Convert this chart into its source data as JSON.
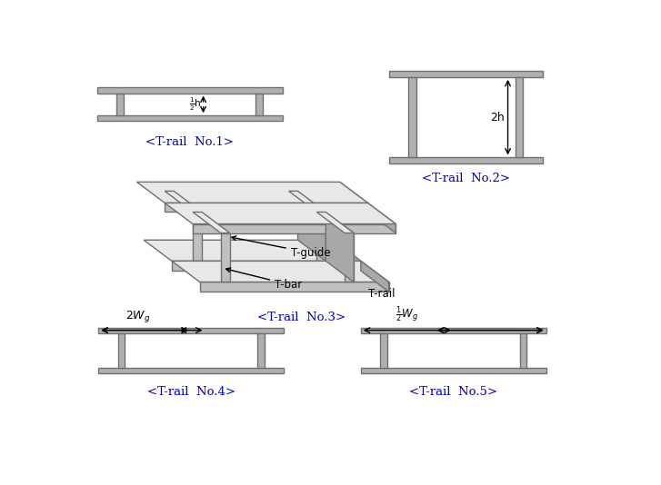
{
  "bg_color": "#ffffff",
  "rail_color": "#b0b0b0",
  "rail_edge": "#707070",
  "label_color": "#0000bb",
  "arrow_color": "#000000",
  "labels": [
    "<T-rail  No.1>",
    "<T-rail  No.2>",
    "<T-rail  No.3>",
    "<T-rail  No.4>",
    "<T-rail  No.5>"
  ],
  "rail_lw": 1.0
}
